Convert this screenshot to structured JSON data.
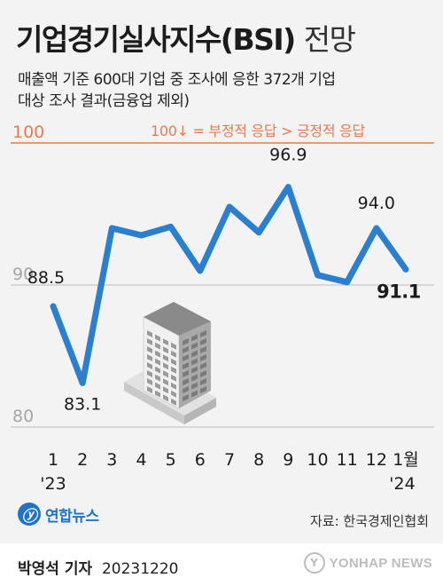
{
  "header": {
    "title_main": "기업경기실사지수(BSI)",
    "title_light": "전망",
    "subtitle_line1": "매출액 기준 600대 기업 중 조사에 응한 372개 기업",
    "subtitle_line2": "대상 조사 결과(금융업 제외)",
    "note": "100↓ = 부정적 응답 > 긍정적 응답"
  },
  "chart_data": {
    "type": "line",
    "title": "기업경기실사지수(BSI) 전망",
    "categories": [
      "1",
      "2",
      "3",
      "4",
      "5",
      "6",
      "7",
      "8",
      "9",
      "10",
      "11",
      "12",
      "1월"
    ],
    "year_labels": [
      {
        "index": 0,
        "label": "'23"
      },
      {
        "index": 12,
        "label": "'24"
      }
    ],
    "series": [
      {
        "values": [
          88.5,
          83.1,
          94.0,
          93.5,
          94.1,
          91.0,
          95.5,
          93.7,
          96.9,
          90.7,
          90.2,
          94.0,
          91.1
        ]
      }
    ],
    "data_labels": [
      {
        "index": 0,
        "text": "88.5",
        "bold": false
      },
      {
        "index": 1,
        "text": "83.1",
        "bold": false
      },
      {
        "index": 8,
        "text": "96.9",
        "bold": false
      },
      {
        "index": 11,
        "text": "94.0",
        "bold": false
      },
      {
        "index": 12,
        "text": "91.1",
        "bold": true
      }
    ],
    "y_ticks": [
      100,
      90,
      80
    ],
    "ylim": [
      80,
      100
    ],
    "line_color": "#2b7fcf",
    "reference_line_color": "#e87a52"
  },
  "footer": {
    "logo_mark": "ⓨ",
    "logo_text": "연합뉴스",
    "source": "자료: 한국경제인협회",
    "reporter_name": "박영석 기자",
    "date": "20231220",
    "watermark_mark": "Y",
    "watermark_text": "YONHAP NEWS"
  }
}
